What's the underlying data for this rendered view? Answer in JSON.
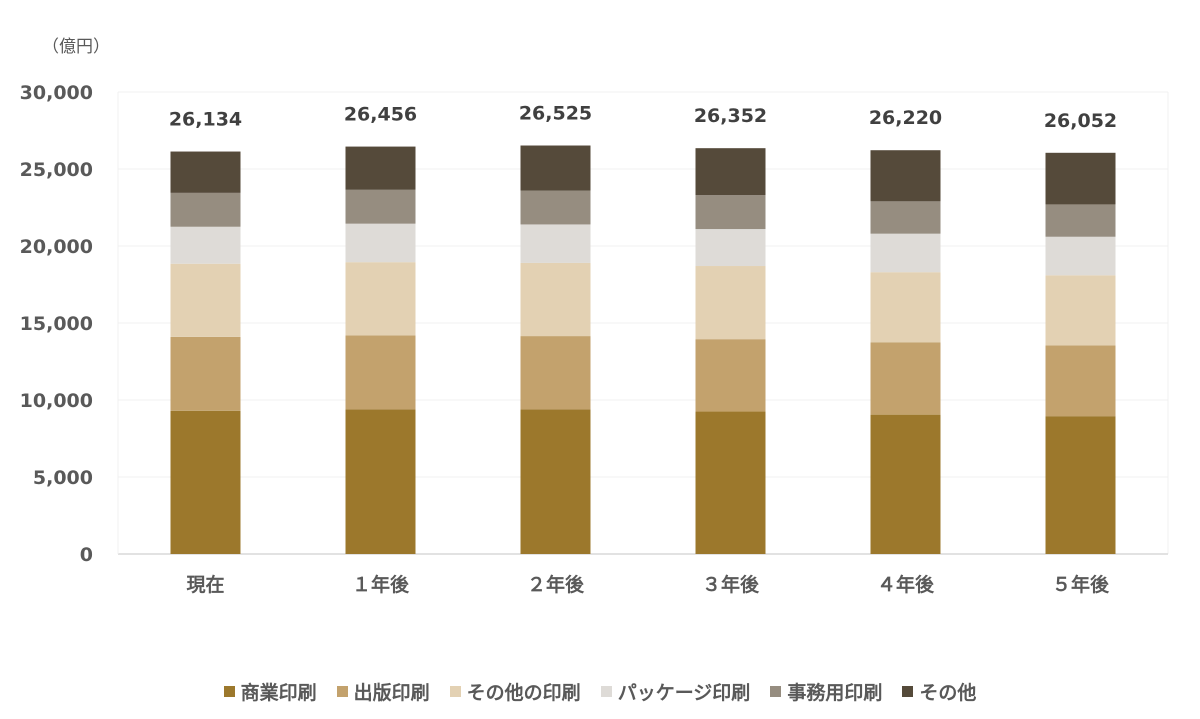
{
  "chart_data": {
    "type": "bar",
    "stacked": true,
    "unit_label": "（億円）",
    "ylim": [
      0,
      30000
    ],
    "yticks": [
      0,
      5000,
      10000,
      15000,
      20000,
      25000,
      30000
    ],
    "ytick_labels": [
      "0",
      "5,000",
      "10,000",
      "15,000",
      "20,000",
      "25,000",
      "30,000"
    ],
    "categories": [
      "現在",
      "１年後",
      "２年後",
      "３年後",
      "４年後",
      "５年後"
    ],
    "totals": [
      "26,134",
      "26,456",
      "26,525",
      "26,352",
      "26,220",
      "26,052"
    ],
    "total_values": [
      26134,
      26456,
      26525,
      26352,
      26220,
      26052
    ],
    "series": [
      {
        "name": "商業印刷",
        "color": "#9c782c",
        "values": [
          9300,
          9400,
          9400,
          9250,
          9050,
          8950
        ]
      },
      {
        "name": "出版印刷",
        "color": "#c3a26d",
        "values": [
          4800,
          4800,
          4750,
          4700,
          4700,
          4600
        ]
      },
      {
        "name": "その他の印刷",
        "color": "#e3d1b3",
        "values": [
          4750,
          4750,
          4750,
          4750,
          4550,
          4550
        ]
      },
      {
        "name": "パッケージ印刷",
        "color": "#dedbd7",
        "values": [
          2400,
          2500,
          2500,
          2400,
          2500,
          2500
        ]
      },
      {
        "name": "事務用印刷",
        "color": "#968d80",
        "values": [
          2200,
          2200,
          2200,
          2200,
          2100,
          2100
        ]
      },
      {
        "name": "その他",
        "color": "#554a3a",
        "values": [
          2684,
          2806,
          2925,
          3052,
          3320,
          3352
        ]
      }
    ],
    "grid": true,
    "legend_position": "bottom"
  }
}
